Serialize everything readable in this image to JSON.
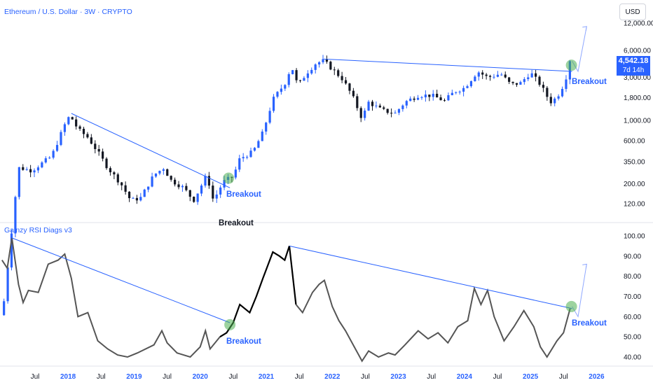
{
  "header": {
    "title": "Ethereum / U.S. Dollar · 3W · CRYPTO",
    "currency": "USD"
  },
  "indicator": {
    "title": "Gainzy RSI Diags v3"
  },
  "price_label": {
    "value": "4,542.18",
    "countdown": "7d 14h"
  },
  "annotations": [
    {
      "text": "Breakout",
      "color": "#2962ff",
      "id": "breakout-2020-price"
    },
    {
      "text": "Breakout",
      "color": "#131722",
      "id": "breakout-black"
    },
    {
      "text": "Breakout",
      "color": "#2962ff",
      "id": "breakout-2025-price"
    },
    {
      "text": "Breakout",
      "color": "#2962ff",
      "id": "breakout-2020-rsi"
    },
    {
      "text": "Breakout",
      "color": "#2962ff",
      "id": "breakout-2025-rsi"
    }
  ],
  "colors": {
    "up": "#2962ff",
    "down": "#131722",
    "trendline": "#2962ff",
    "rsi": "#555555",
    "rsi_strong": "#000000",
    "highlight": "#4caf50"
  },
  "chart_data": [
    {
      "type": "candlestick",
      "title": "Ethereum / U.S. Dollar · 3W · CRYPTO",
      "scale": "log",
      "y_ticks": [
        "12,000.00",
        "6,000.00",
        "3,000.00",
        "1,800.00",
        "1,000.00",
        "600.00",
        "350.00",
        "200.00",
        "120.00"
      ],
      "y_tick_values": [
        12000,
        6000,
        3000,
        1800,
        1000,
        600,
        350,
        200,
        120
      ],
      "x_ticks": [
        "Jul",
        "2018",
        "Jul",
        "2019",
        "Jul",
        "2020",
        "Jul",
        "2021",
        "Jul",
        "2022",
        "Jul",
        "2023",
        "Jul",
        "2024",
        "Jul",
        "2025",
        "Jul",
        "2026"
      ],
      "x_tick_values": [
        2017.5,
        2018.0,
        2018.5,
        2019.0,
        2019.5,
        2020.0,
        2020.5,
        2021.0,
        2021.5,
        2022.0,
        2022.5,
        2023.0,
        2023.5,
        2024.0,
        2024.5,
        2025.0,
        2025.5,
        2026.0
      ],
      "close_anchors": [
        [
          2017.03,
          10
        ],
        [
          2017.25,
          300
        ],
        [
          2017.45,
          280
        ],
        [
          2017.75,
          400
        ],
        [
          2017.95,
          900
        ],
        [
          2018.03,
          1150
        ],
        [
          2018.15,
          800
        ],
        [
          2018.3,
          650
        ],
        [
          2018.45,
          450
        ],
        [
          2018.6,
          300
        ],
        [
          2018.8,
          200
        ],
        [
          2018.95,
          130
        ],
        [
          2019.1,
          140
        ],
        [
          2019.3,
          250
        ],
        [
          2019.45,
          300
        ],
        [
          2019.55,
          220
        ],
        [
          2019.75,
          180
        ],
        [
          2019.9,
          130
        ],
        [
          2020.0,
          180
        ],
        [
          2020.1,
          250
        ],
        [
          2020.2,
          130
        ],
        [
          2020.35,
          210
        ],
        [
          2020.5,
          240
        ],
        [
          2020.6,
          380
        ],
        [
          2020.8,
          450
        ],
        [
          2020.95,
          740
        ],
        [
          2021.1,
          1700
        ],
        [
          2021.3,
          2700
        ],
        [
          2021.38,
          4100
        ],
        [
          2021.48,
          2400
        ],
        [
          2021.6,
          3300
        ],
        [
          2021.75,
          4300
        ],
        [
          2021.87,
          4600
        ],
        [
          2022.0,
          3700
        ],
        [
          2022.15,
          2900
        ],
        [
          2022.3,
          1900
        ],
        [
          2022.45,
          1050
        ],
        [
          2022.55,
          1600
        ],
        [
          2022.75,
          1300
        ],
        [
          2022.95,
          1200
        ],
        [
          2023.1,
          1600
        ],
        [
          2023.3,
          1900
        ],
        [
          2023.5,
          1900
        ],
        [
          2023.7,
          1650
        ],
        [
          2023.85,
          2100
        ],
        [
          2024.0,
          2300
        ],
        [
          2024.2,
          3500
        ],
        [
          2024.35,
          3000
        ],
        [
          2024.55,
          3300
        ],
        [
          2024.7,
          2500
        ],
        [
          2024.85,
          2600
        ],
        [
          2025.0,
          3400
        ],
        [
          2025.15,
          2500
        ],
        [
          2025.3,
          1600
        ],
        [
          2025.4,
          1800
        ],
        [
          2025.5,
          2500
        ],
        [
          2025.58,
          3700
        ],
        [
          2025.63,
          4542.18
        ]
      ],
      "projection": [
        [
          2025.63,
          4542
        ],
        [
          2025.72,
          3500
        ],
        [
          2025.85,
          11000
        ]
      ],
      "trendlines": [
        {
          "from": [
            2018.05,
            1200
          ],
          "to": [
            2020.45,
            180
          ]
        },
        {
          "from": [
            2021.87,
            4800
          ],
          "to": [
            2025.63,
            3500
          ]
        }
      ],
      "highlights": [
        [
          2020.43,
          230
        ],
        [
          2025.62,
          4100
        ]
      ],
      "last_price": 4542.18
    },
    {
      "type": "line",
      "title": "Gainzy RSI Diags v3",
      "y_ticks": [
        "100.00",
        "90.00",
        "80.00",
        "70.00",
        "60.00",
        "50.00",
        "40.00"
      ],
      "y_tick_values": [
        100,
        90,
        80,
        70,
        60,
        50,
        40
      ],
      "ylim": [
        36,
        102
      ],
      "anchors": [
        [
          2017.0,
          88
        ],
        [
          2017.08,
          84
        ],
        [
          2017.15,
          99
        ],
        [
          2017.25,
          76
        ],
        [
          2017.32,
          67
        ],
        [
          2017.4,
          73
        ],
        [
          2017.55,
          72
        ],
        [
          2017.7,
          86
        ],
        [
          2017.85,
          88
        ],
        [
          2017.95,
          91
        ],
        [
          2018.05,
          79
        ],
        [
          2018.15,
          60
        ],
        [
          2018.3,
          62
        ],
        [
          2018.45,
          48
        ],
        [
          2018.6,
          44
        ],
        [
          2018.75,
          41
        ],
        [
          2018.9,
          40
        ],
        [
          2019.05,
          42
        ],
        [
          2019.3,
          46
        ],
        [
          2019.42,
          53
        ],
        [
          2019.5,
          47
        ],
        [
          2019.65,
          42
        ],
        [
          2019.85,
          40
        ],
        [
          2020.0,
          45
        ],
        [
          2020.08,
          53
        ],
        [
          2020.15,
          44
        ],
        [
          2020.3,
          50
        ],
        [
          2020.4,
          52
        ],
        [
          2020.5,
          57
        ],
        [
          2020.6,
          66
        ],
        [
          2020.75,
          62
        ],
        [
          2020.85,
          70
        ],
        [
          2020.95,
          79
        ],
        [
          2021.1,
          92
        ],
        [
          2021.2,
          90
        ],
        [
          2021.28,
          88
        ],
        [
          2021.35,
          95
        ],
        [
          2021.45,
          66
        ],
        [
          2021.55,
          62
        ],
        [
          2021.7,
          72
        ],
        [
          2021.8,
          76
        ],
        [
          2021.88,
          78
        ],
        [
          2022.0,
          65
        ],
        [
          2022.1,
          58
        ],
        [
          2022.2,
          53
        ],
        [
          2022.35,
          44
        ],
        [
          2022.45,
          38
        ],
        [
          2022.55,
          43
        ],
        [
          2022.7,
          40
        ],
        [
          2022.85,
          42
        ],
        [
          2022.95,
          41
        ],
        [
          2023.1,
          46
        ],
        [
          2023.3,
          53
        ],
        [
          2023.45,
          49
        ],
        [
          2023.6,
          52
        ],
        [
          2023.75,
          47
        ],
        [
          2023.9,
          55
        ],
        [
          2024.05,
          58
        ],
        [
          2024.15,
          74
        ],
        [
          2024.25,
          66
        ],
        [
          2024.35,
          73
        ],
        [
          2024.45,
          60
        ],
        [
          2024.6,
          48
        ],
        [
          2024.75,
          55
        ],
        [
          2024.9,
          63
        ],
        [
          2025.05,
          55
        ],
        [
          2025.15,
          45
        ],
        [
          2025.25,
          40
        ],
        [
          2025.4,
          48
        ],
        [
          2025.5,
          52
        ],
        [
          2025.6,
          64
        ]
      ],
      "strong_range": [
        2020.3,
        2021.45
      ],
      "projection": [
        [
          2025.63,
          65
        ],
        [
          2025.72,
          60
        ],
        [
          2025.85,
          86
        ]
      ],
      "trendlines": [
        {
          "from": [
            2017.15,
            99
          ],
          "to": [
            2020.45,
            57
          ]
        },
        {
          "from": [
            2021.35,
            95
          ],
          "to": [
            2025.63,
            64
          ]
        }
      ],
      "highlights": [
        [
          2020.45,
          56
        ],
        [
          2025.62,
          65
        ]
      ]
    }
  ]
}
